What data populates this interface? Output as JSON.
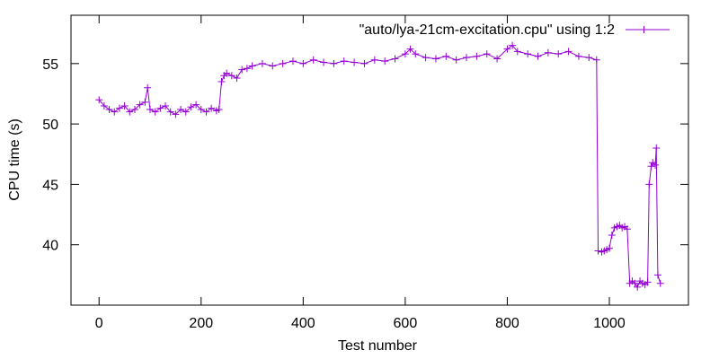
{
  "chart_data": {
    "type": "line",
    "xlabel": "Test number",
    "ylabel": "CPU time (s)",
    "xlim": [
      -55,
      1155
    ],
    "ylim": [
      35,
      59
    ],
    "xticks": [
      0,
      200,
      400,
      600,
      800,
      1000
    ],
    "yticks": [
      40,
      45,
      50,
      55
    ],
    "grid": false,
    "legend_position": "top-right",
    "marker": "plus",
    "color": "#9400d3",
    "series": [
      {
        "name": "\"auto/lya-21cm-excitation.cpu\" using 1:2",
        "x": [
          0,
          10,
          20,
          30,
          40,
          50,
          60,
          70,
          80,
          90,
          95,
          100,
          110,
          120,
          130,
          140,
          150,
          160,
          170,
          180,
          190,
          200,
          210,
          220,
          230,
          235,
          240,
          245,
          250,
          260,
          270,
          280,
          290,
          300,
          320,
          340,
          360,
          380,
          400,
          420,
          440,
          460,
          480,
          500,
          520,
          540,
          560,
          580,
          600,
          610,
          620,
          640,
          660,
          680,
          700,
          720,
          740,
          760,
          780,
          800,
          810,
          820,
          840,
          860,
          880,
          900,
          920,
          940,
          960,
          975,
          978,
          985,
          990,
          995,
          1000,
          1005,
          1010,
          1015,
          1020,
          1025,
          1030,
          1035,
          1040,
          1045,
          1050,
          1055,
          1060,
          1065,
          1070,
          1075,
          1078,
          1082,
          1085,
          1090,
          1092,
          1095,
          1100
        ],
        "y": [
          52.0,
          51.5,
          51.2,
          51.0,
          51.3,
          51.5,
          51.0,
          51.2,
          51.6,
          51.8,
          53.0,
          51.2,
          51.0,
          51.3,
          51.5,
          51.0,
          50.8,
          51.2,
          51.0,
          51.4,
          51.6,
          51.2,
          51.0,
          51.3,
          51.1,
          51.2,
          53.5,
          54.0,
          54.2,
          54.0,
          53.8,
          54.5,
          54.6,
          54.8,
          55.0,
          54.8,
          55.0,
          55.2,
          55.0,
          55.3,
          55.1,
          55.0,
          55.2,
          55.1,
          55.0,
          55.3,
          55.2,
          55.4,
          55.8,
          56.2,
          55.8,
          55.5,
          55.4,
          55.6,
          55.3,
          55.5,
          55.6,
          55.8,
          55.4,
          56.2,
          56.5,
          56.0,
          55.8,
          55.6,
          55.9,
          55.8,
          56.0,
          55.6,
          55.5,
          55.3,
          39.5,
          39.4,
          39.5,
          39.6,
          39.7,
          40.8,
          41.4,
          41.5,
          41.6,
          41.4,
          41.5,
          41.3,
          36.8,
          37.0,
          36.8,
          36.5,
          37.0,
          36.8,
          36.7,
          36.9,
          45.0,
          46.5,
          46.8,
          46.6,
          48.0,
          37.5,
          36.8
        ]
      }
    ]
  }
}
